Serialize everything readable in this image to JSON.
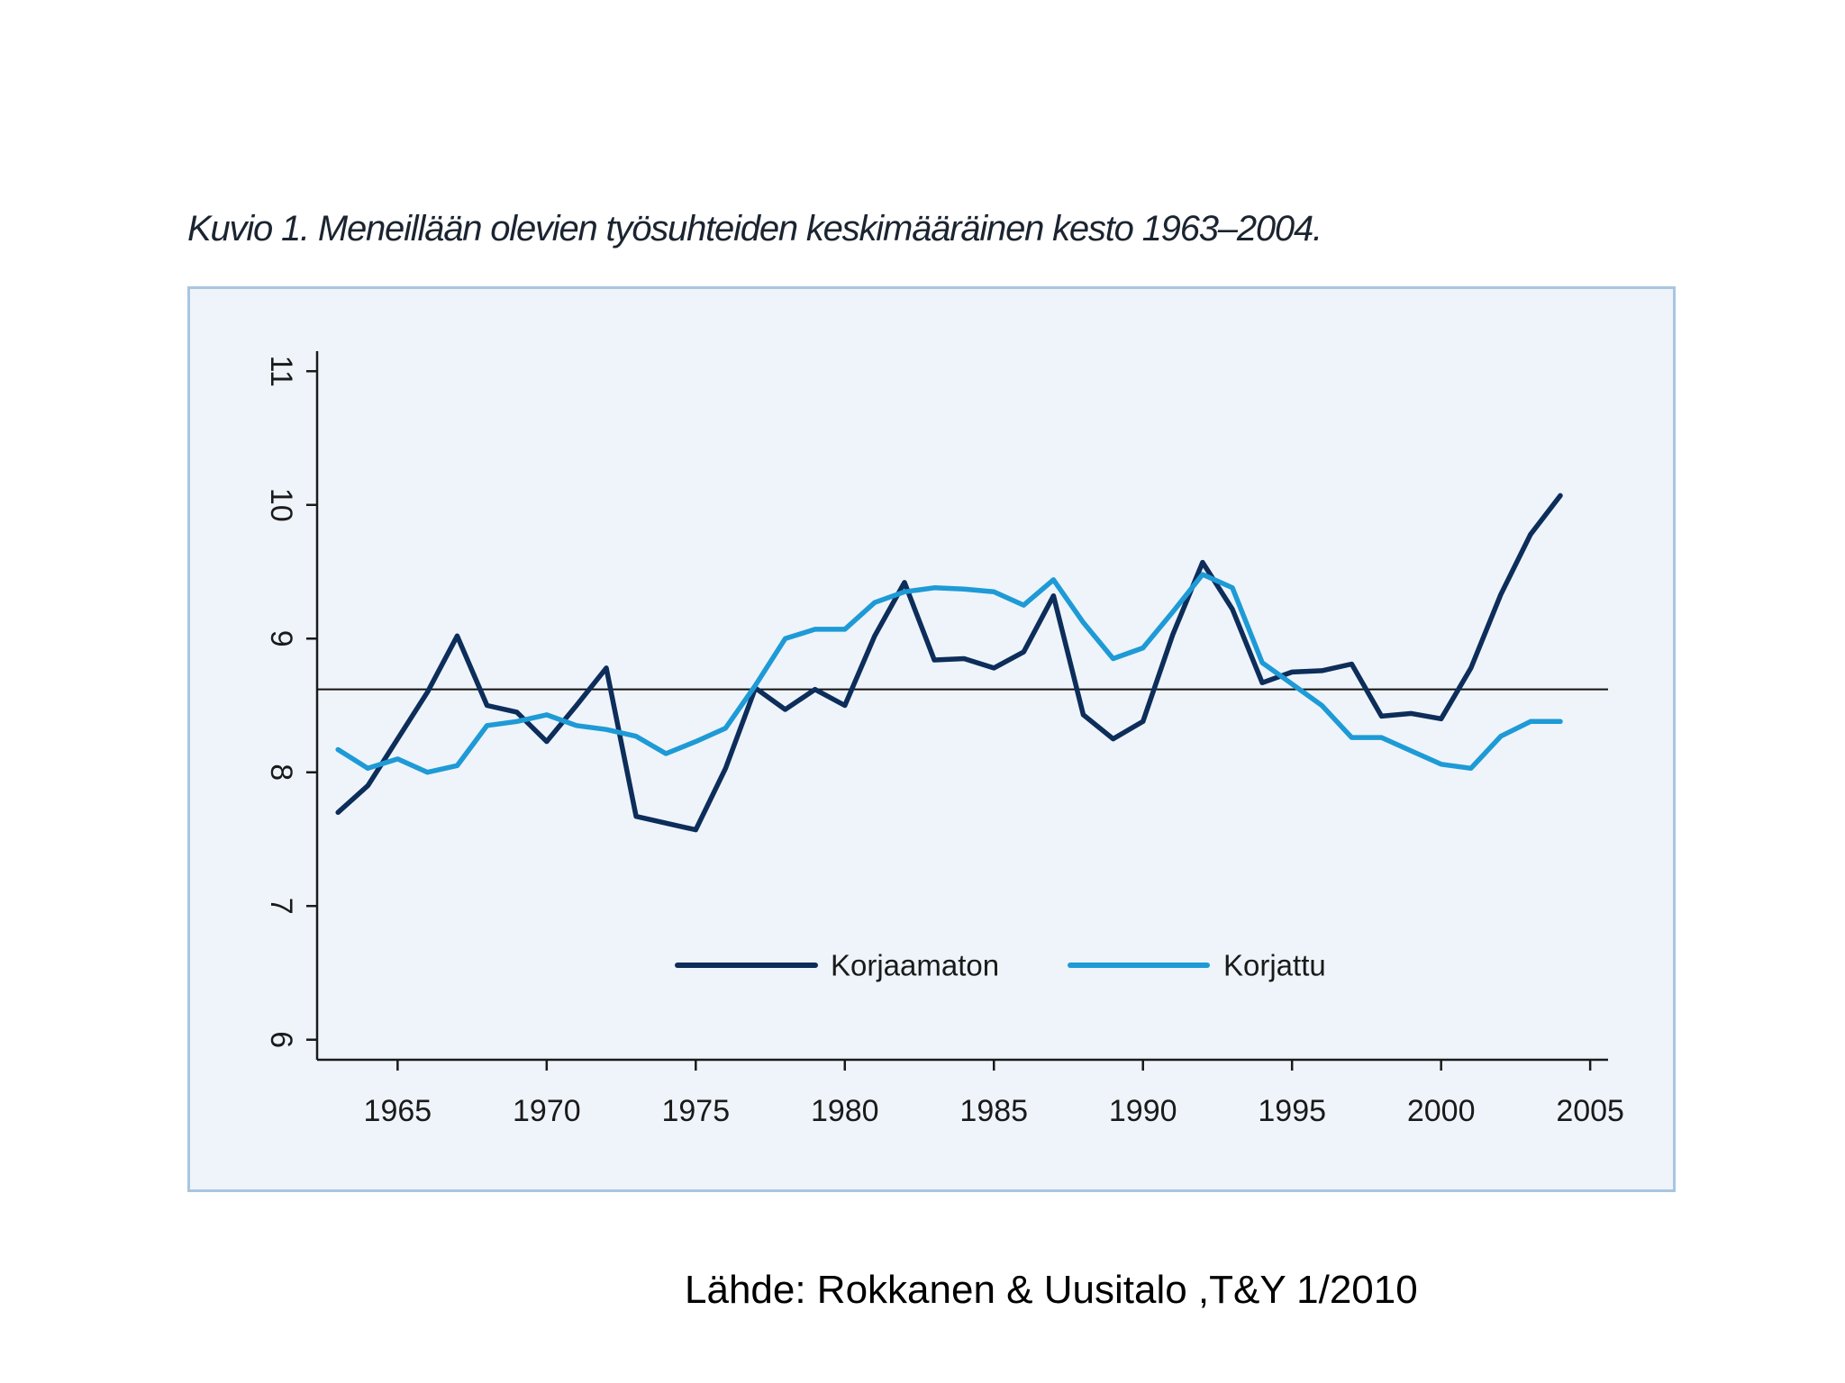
{
  "title": "Kuvio 1. Meneillään olevien työsuhteiden keskimääräinen kesto 1963–2004.",
  "source": "Lähde: Rokkanen & Uusitalo ,T&Y 1/2010",
  "colors": {
    "panel_background": "#eef4fa",
    "panel_border": "#a9c5e0",
    "korjaamaton": "#0d2d5a",
    "korjattu": "#1e9ad6",
    "axis": "#1a1a1a"
  },
  "chart_data": {
    "type": "line",
    "title": "",
    "xlabel": "",
    "ylabel": "",
    "xlim": [
      1962.3,
      2005.6
    ],
    "ylim": [
      5.85,
      11.15
    ],
    "xticks": [
      1965,
      1970,
      1975,
      1980,
      1985,
      1990,
      1995,
      2000,
      2005
    ],
    "yticks": [
      6,
      7,
      8,
      9,
      10,
      11
    ],
    "y_tick_labels_rotated": true,
    "grid": false,
    "legend_placement": "bottom-center",
    "reference_line": {
      "y": 8.62
    },
    "x": [
      1963,
      1964,
      1965,
      1966,
      1967,
      1968,
      1969,
      1970,
      1971,
      1972,
      1973,
      1974,
      1975,
      1976,
      1977,
      1978,
      1979,
      1980,
      1981,
      1982,
      1983,
      1984,
      1985,
      1986,
      1987,
      1988,
      1989,
      1990,
      1991,
      1992,
      1993,
      1994,
      1995,
      1996,
      1997,
      1998,
      1999,
      2000,
      2001,
      2002,
      2003,
      2004
    ],
    "series": [
      {
        "name": "Korjaamaton",
        "color": "#0d2d5a",
        "values": [
          7.7,
          7.9,
          8.25,
          8.6,
          9.02,
          8.5,
          8.45,
          8.23,
          8.5,
          8.78,
          7.67,
          7.62,
          7.57,
          8.03,
          8.63,
          8.47,
          8.62,
          8.5,
          9.02,
          9.42,
          8.84,
          8.85,
          8.78,
          8.9,
          9.32,
          8.43,
          8.25,
          8.38,
          9.03,
          9.57,
          9.22,
          8.67,
          8.75,
          8.76,
          8.81,
          8.42,
          8.44,
          8.4,
          8.78,
          9.33,
          9.78,
          10.07
        ]
      },
      {
        "name": "Korjattu",
        "color": "#1e9ad6",
        "values": [
          8.17,
          8.03,
          8.1,
          8.0,
          8.05,
          8.35,
          8.38,
          8.43,
          8.35,
          8.32,
          8.27,
          8.14,
          8.23,
          8.33,
          8.65,
          9.0,
          9.07,
          9.07,
          9.27,
          9.35,
          9.38,
          9.37,
          9.35,
          9.25,
          9.44,
          9.12,
          8.85,
          8.93,
          9.2,
          9.48,
          9.38,
          8.82,
          8.66,
          8.5,
          8.26,
          8.26,
          8.16,
          8.06,
          8.03,
          8.27,
          8.38,
          8.38
        ]
      }
    ]
  }
}
